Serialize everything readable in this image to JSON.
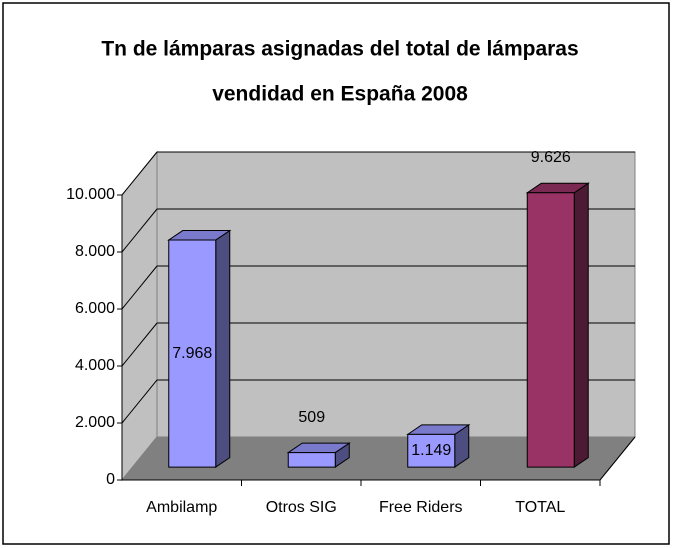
{
  "chart_data": {
    "type": "bar3d",
    "title": [
      "Tn de lámparas asignadas del total de lámparas",
      "vendidad en España 2008"
    ],
    "categories": [
      "Ambilamp",
      "Otros SIG",
      "Free Riders",
      "TOTAL"
    ],
    "values": [
      7968,
      509,
      1149,
      9626
    ],
    "value_labels": [
      "7.968",
      "509",
      "1.149",
      "9.626"
    ],
    "colors": [
      "#9999ff",
      "#9999ff",
      "#9999ff",
      "#993366"
    ],
    "ylim": [
      0,
      10000
    ],
    "yticks": [
      0,
      {
        "value": 2000,
        "label": "2.000"
      },
      {
        "value": 4000,
        "label": "4.000"
      },
      {
        "value": 6000,
        "label": "6.000"
      },
      {
        "value": 8000,
        "label": "8.000"
      },
      {
        "value": 10000,
        "label": "10.000"
      }
    ],
    "grid": true
  }
}
